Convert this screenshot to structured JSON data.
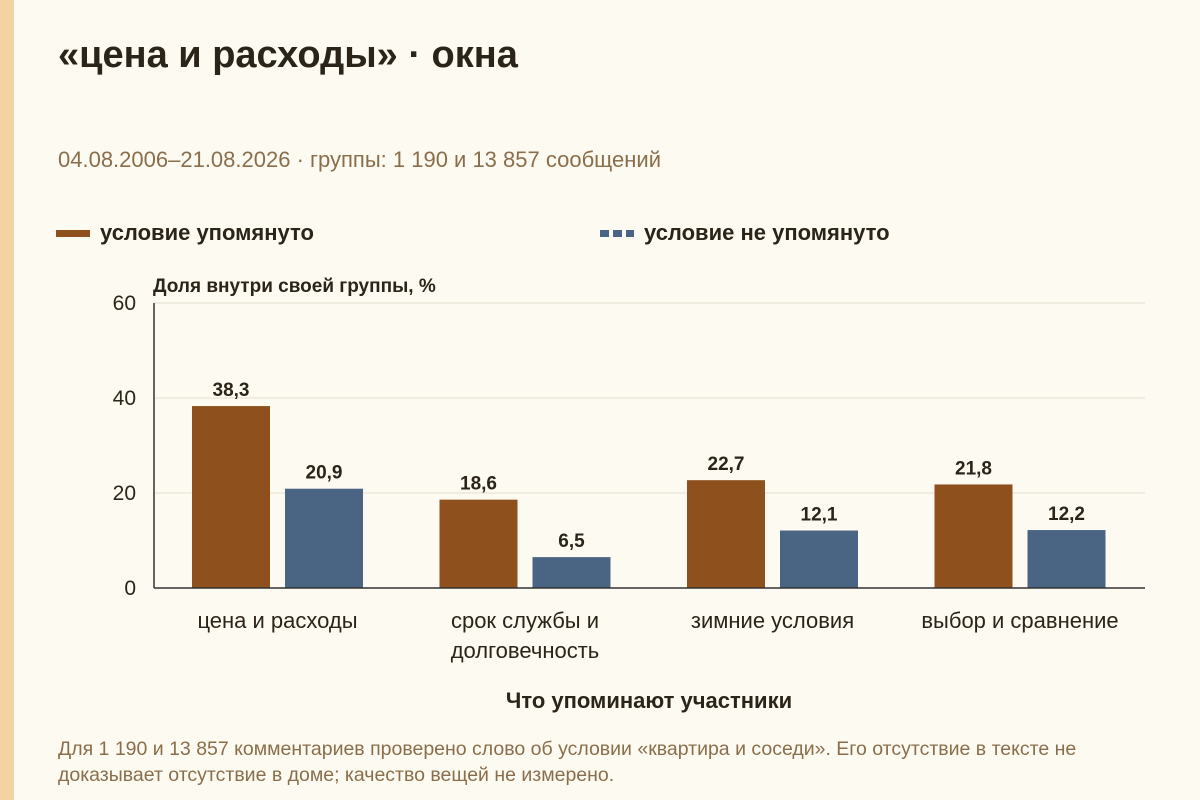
{
  "title": "«цена и расходы» · окна",
  "subtitle": "04.08.2006–21.08.2026 · группы: 1 190 и 13 857 сообщений",
  "footnote": "Для 1 190 и 13 857 комментариев проверено слово об условии «квартира и соседи». Его отсутствие в тексте не доказывает отсутствие в доме; качество вещей не измерено.",
  "colors": {
    "mentioned": "#8e511e",
    "not_mentioned": "#4a6483",
    "gridline": "#e3ddd0",
    "axis": "#333333",
    "accent_stripe": "#f4d3a3"
  },
  "chart_data": {
    "type": "bar",
    "categories": [
      "цена и расходы",
      "срок службы и долговечность",
      "зимние условия",
      "выбор и сравнение"
    ],
    "category_label_lines": [
      [
        "цена и расходы"
      ],
      [
        "срок службы и",
        "долговечность"
      ],
      [
        "зимние условия"
      ],
      [
        "выбор и сравнение"
      ]
    ],
    "series": [
      {
        "name": "условие упомянуто",
        "values": [
          38.3,
          18.6,
          22.7,
          21.8
        ],
        "value_labels": [
          "38,3",
          "18,6",
          "22,7",
          "21,8"
        ],
        "color": "#8e511e"
      },
      {
        "name": "условие не упомянуто",
        "values": [
          20.9,
          6.5,
          12.1,
          12.2
        ],
        "value_labels": [
          "20,9",
          "6,5",
          "12,1",
          "12,2"
        ],
        "color": "#4a6483"
      }
    ],
    "ylabel": "Доля внутри своей группы, %",
    "xlabel": "Что упоминают участники",
    "ylim": [
      0,
      60
    ],
    "yticks": [
      0,
      20,
      40,
      60
    ],
    "grid": true,
    "legend_position": "top-left"
  }
}
